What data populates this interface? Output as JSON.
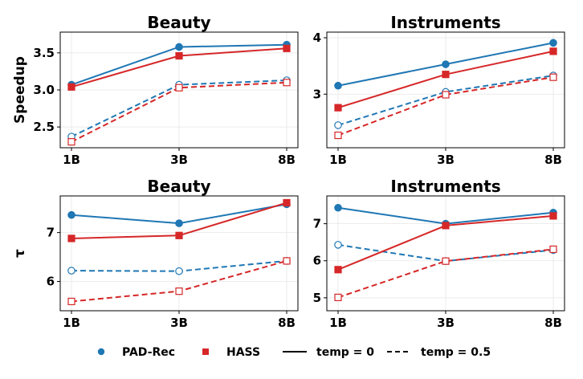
{
  "chart_data": [
    {
      "type": "line",
      "title": "Beauty",
      "ylabel": "Speedup",
      "categories": [
        "1B",
        "3B",
        "8B"
      ],
      "ylim": [
        2.22,
        3.78
      ],
      "yticks": [
        2.5,
        3.0,
        3.5
      ],
      "ytick_labels": [
        "2.5",
        "3.0",
        "3.5"
      ],
      "series": [
        {
          "name": "PAD-Rec",
          "temp": "temp = 0",
          "values": [
            3.07,
            3.58,
            3.61
          ]
        },
        {
          "name": "HASS",
          "temp": "temp = 0",
          "values": [
            3.04,
            3.46,
            3.56
          ]
        },
        {
          "name": "PAD-Rec",
          "temp": "temp = 0.5",
          "values": [
            2.37,
            3.07,
            3.13
          ]
        },
        {
          "name": "HASS",
          "temp": "temp = 0.5",
          "values": [
            2.3,
            3.03,
            3.1
          ]
        }
      ]
    },
    {
      "type": "line",
      "title": "Instruments",
      "ylabel": "",
      "categories": [
        "1B",
        "3B",
        "8B"
      ],
      "ylim": [
        2.05,
        4.1
      ],
      "yticks": [
        3,
        4
      ],
      "ytick_labels": [
        "3",
        "4"
      ],
      "series": [
        {
          "name": "PAD-Rec",
          "temp": "temp = 0",
          "values": [
            3.15,
            3.53,
            3.91
          ]
        },
        {
          "name": "HASS",
          "temp": "temp = 0",
          "values": [
            2.76,
            3.35,
            3.76
          ]
        },
        {
          "name": "PAD-Rec",
          "temp": "temp = 0.5",
          "values": [
            2.45,
            3.04,
            3.33
          ]
        },
        {
          "name": "HASS",
          "temp": "temp = 0.5",
          "values": [
            2.27,
            2.99,
            3.3
          ]
        }
      ]
    },
    {
      "type": "line",
      "title": "Beauty",
      "ylabel": "τ",
      "categories": [
        "1B",
        "3B",
        "8B"
      ],
      "ylim": [
        5.4,
        7.75
      ],
      "yticks": [
        6,
        7
      ],
      "ytick_labels": [
        "6",
        "7"
      ],
      "series": [
        {
          "name": "PAD-Rec",
          "temp": "temp = 0",
          "values": [
            7.36,
            7.19,
            7.58
          ]
        },
        {
          "name": "HASS",
          "temp": "temp = 0",
          "values": [
            6.88,
            6.94,
            7.61
          ]
        },
        {
          "name": "PAD-Rec",
          "temp": "temp = 0.5",
          "values": [
            6.22,
            6.21,
            6.42
          ]
        },
        {
          "name": "HASS",
          "temp": "temp = 0.5",
          "values": [
            5.59,
            5.8,
            6.42
          ]
        }
      ]
    },
    {
      "type": "line",
      "title": "Instruments",
      "ylabel": "",
      "categories": [
        "1B",
        "3B",
        "8B"
      ],
      "ylim": [
        4.65,
        7.75
      ],
      "yticks": [
        5,
        6,
        7
      ],
      "ytick_labels": [
        "5",
        "6",
        "7"
      ],
      "series": [
        {
          "name": "PAD-Rec",
          "temp": "temp = 0",
          "values": [
            7.43,
            7.0,
            7.3
          ]
        },
        {
          "name": "HASS",
          "temp": "temp = 0",
          "values": [
            5.76,
            6.95,
            7.21
          ]
        },
        {
          "name": "PAD-Rec",
          "temp": "temp = 0.5",
          "values": [
            6.43,
            5.99,
            6.29
          ]
        },
        {
          "name": "HASS",
          "temp": "temp = 0.5",
          "values": [
            5.01,
            5.99,
            6.31
          ]
        }
      ]
    }
  ],
  "legend": {
    "placement": "bottom",
    "entries": [
      {
        "label": "PAD-Rec",
        "marker": "circle",
        "color": "#1f77b4"
      },
      {
        "label": "HASS",
        "marker": "square",
        "color": "#d62728"
      },
      {
        "label": "temp = 0",
        "line": "solid",
        "color": "#000000"
      },
      {
        "label": "temp = 0.5",
        "line": "dashed",
        "color": "#000000"
      }
    ]
  },
  "colors": {
    "PAD-Rec": "#1f77b4",
    "HASS": "#d62728"
  }
}
